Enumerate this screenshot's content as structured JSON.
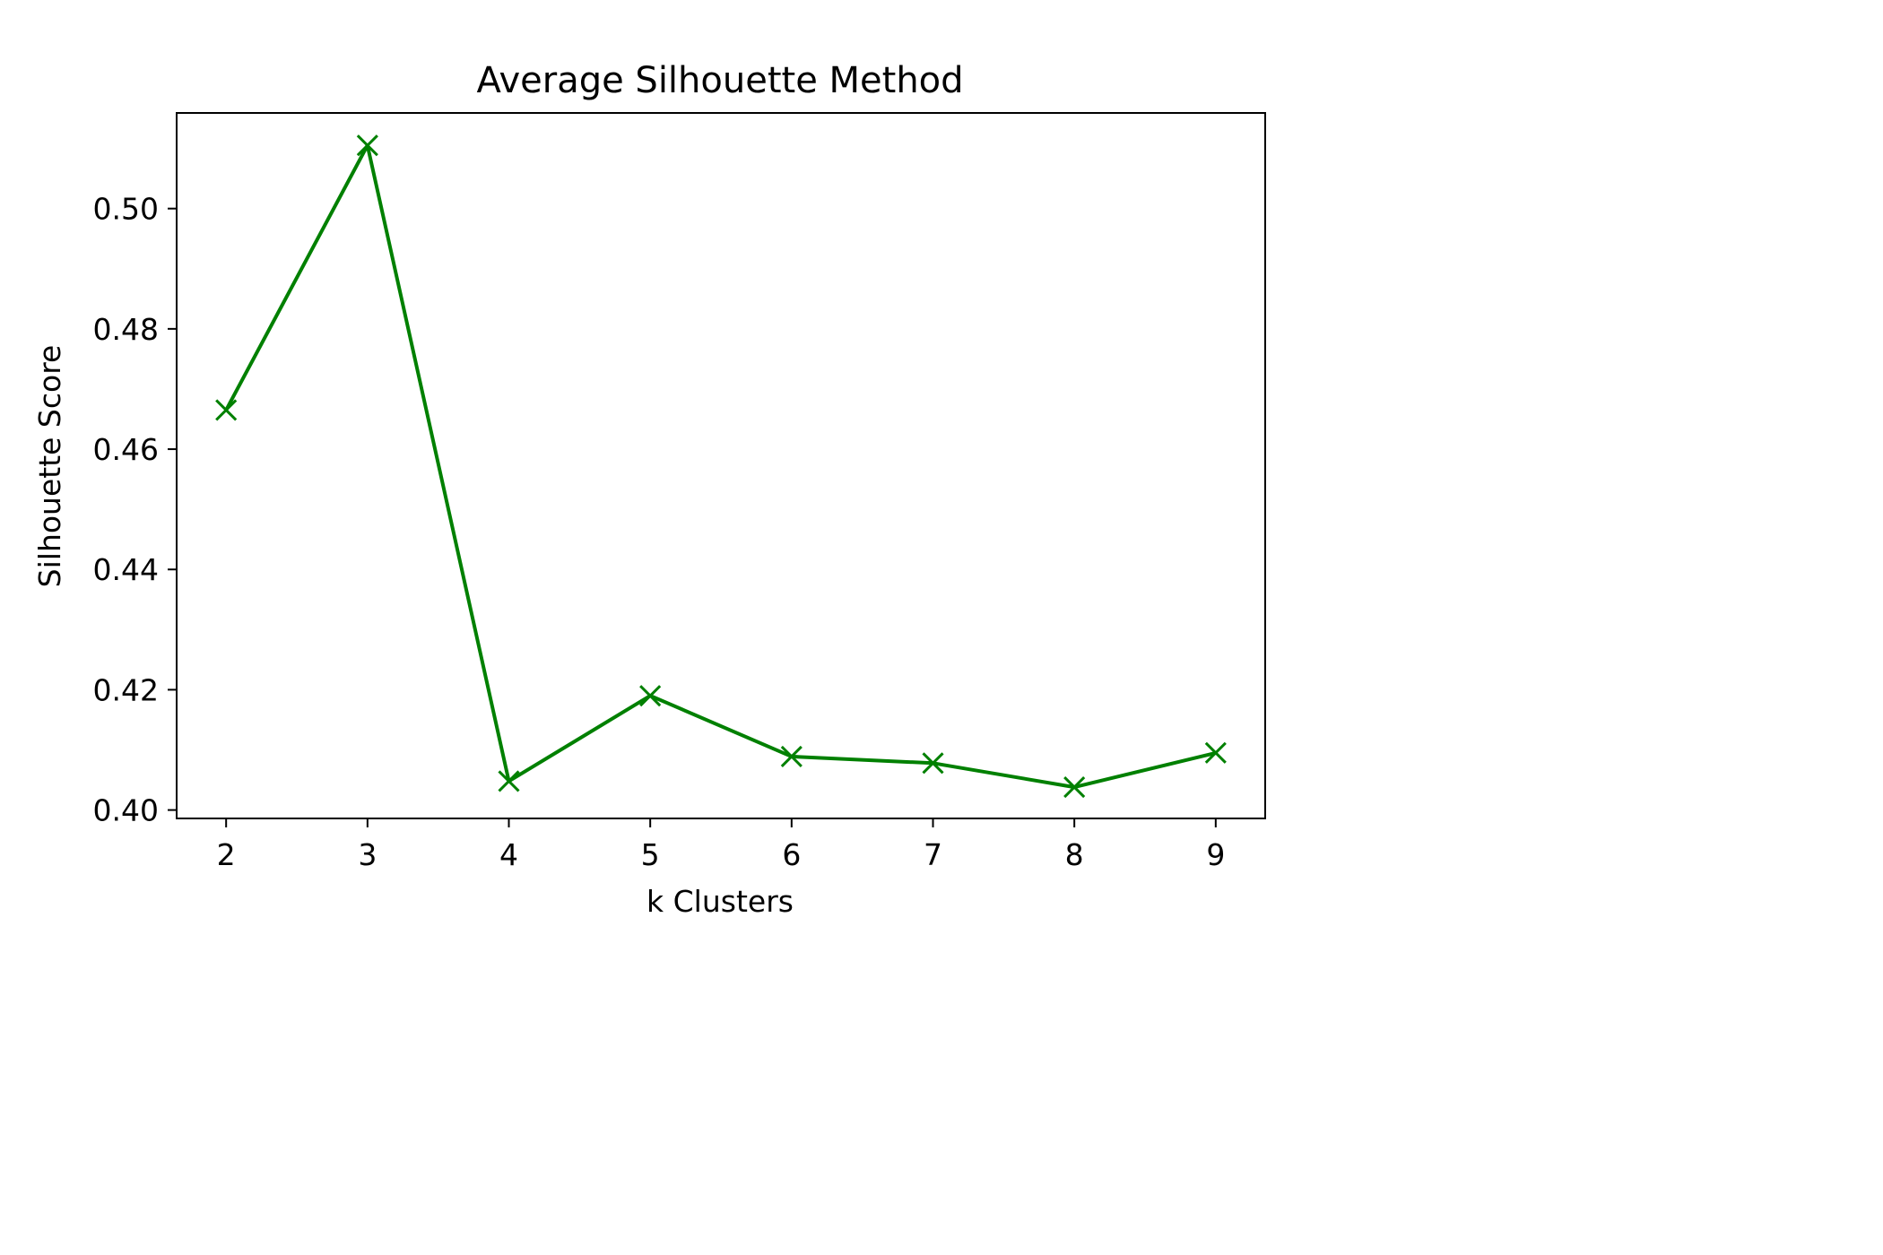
{
  "chart_data": {
    "type": "line",
    "title": "Average Silhouette Method",
    "xlabel": "k Clusters",
    "ylabel": "Silhouette Score",
    "x": [
      2,
      3,
      4,
      5,
      6,
      7,
      8,
      9
    ],
    "series": [
      {
        "values": [
          0.4665,
          0.5105,
          0.4048,
          0.419,
          0.4089,
          0.4078,
          0.4038,
          0.4095
        ],
        "color": "#008000",
        "marker": "x"
      }
    ],
    "xticks": [
      "2",
      "3",
      "4",
      "5",
      "6",
      "7",
      "8",
      "9"
    ],
    "yticks": [
      "0.40",
      "0.42",
      "0.44",
      "0.46",
      "0.48",
      "0.50"
    ],
    "xlim": [
      1.65,
      9.35
    ],
    "ylim": [
      0.3986,
      0.5159
    ],
    "grid": false,
    "legend": false
  }
}
